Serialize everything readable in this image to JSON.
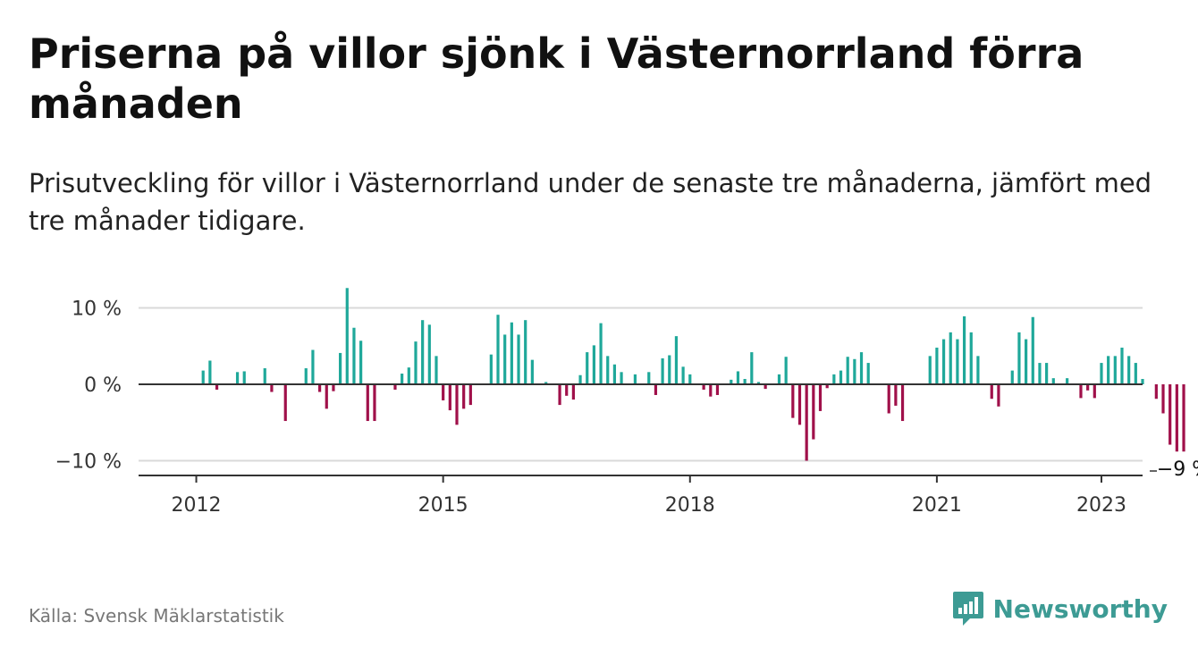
{
  "title": "Priserna på villor sjönk i Västernorrland förra månaden",
  "subtitle": "Prisutveckling för villor i Västernorrland under de senaste tre månaderna, jämfört med tre månader tidigare.",
  "source": "Källa: Svensk Mäklarstatistik",
  "brand": {
    "name": "Newsworthy",
    "icon": "newsworthy-logo-icon"
  },
  "colors": {
    "positive": "#1fa89a",
    "negative": "#a0104a",
    "axis": "#333333",
    "grid": "#d9d9d9",
    "brand": "#3d9b94"
  },
  "chart_data": {
    "type": "bar",
    "ylim": [
      -12,
      13
    ],
    "y_ticks": [
      10,
      0,
      -10
    ],
    "y_tick_labels": [
      "10 %",
      "0 %",
      "−10 %"
    ],
    "x_start": "2011-01",
    "x_ticks": [
      {
        "x": "2012-01",
        "label": "2012"
      },
      {
        "x": "2015-01",
        "label": "2015"
      },
      {
        "x": "2018-01",
        "label": "2018"
      },
      {
        "x": "2021-01",
        "label": "2021"
      },
      {
        "x": "2023-01",
        "label": "2023"
      }
    ],
    "last_value_label": "−9 %",
    "values": [
      0,
      0,
      0,
      0,
      0,
      0,
      0,
      0,
      0,
      0,
      0,
      0,
      0,
      1.8,
      3.1,
      -0.7,
      0,
      0,
      1.6,
      1.7,
      0,
      0,
      2.1,
      -1.0,
      0,
      -4.8,
      0,
      0,
      2.1,
      4.5,
      -1.0,
      -3.2,
      -0.9,
      4.1,
      12.6,
      7.4,
      5.7,
      -4.8,
      -4.8,
      0,
      0,
      -0.7,
      1.4,
      2.2,
      5.6,
      8.4,
      7.8,
      3.7,
      -2.1,
      -3.4,
      -5.3,
      -3.2,
      -2.7,
      0,
      0,
      3.9,
      9.1,
      6.5,
      8.1,
      6.5,
      8.4,
      3.2,
      0,
      0.3,
      0,
      -2.7,
      -1.5,
      -2.0,
      1.2,
      4.2,
      5.1,
      8.0,
      3.7,
      2.6,
      1.6,
      0,
      1.3,
      0,
      1.6,
      -1.4,
      3.4,
      3.8,
      6.3,
      2.3,
      1.3,
      0,
      -0.7,
      -1.6,
      -1.4,
      0,
      0.6,
      1.7,
      0.7,
      4.2,
      0.3,
      -0.6,
      0,
      1.3,
      3.6,
      -4.4,
      -5.3,
      -10.0,
      -7.2,
      -3.5,
      -0.5,
      1.3,
      1.8,
      3.6,
      3.3,
      4.2,
      2.8,
      0,
      0,
      -3.8,
      -2.8,
      -4.8,
      0,
      0,
      0,
      3.7,
      4.8,
      5.9,
      6.8,
      5.9,
      8.9,
      6.8,
      3.7,
      0,
      -1.9,
      -2.9,
      0,
      1.8,
      6.8,
      5.9,
      8.8,
      2.8,
      2.8,
      0.8,
      0,
      0.8,
      0,
      -1.8,
      -0.8,
      -1.8,
      2.8,
      3.7,
      3.7,
      4.8,
      3.7,
      2.8,
      0.7,
      0,
      -1.9,
      -3.8,
      -7.9,
      -8.8,
      -8.8
    ]
  }
}
